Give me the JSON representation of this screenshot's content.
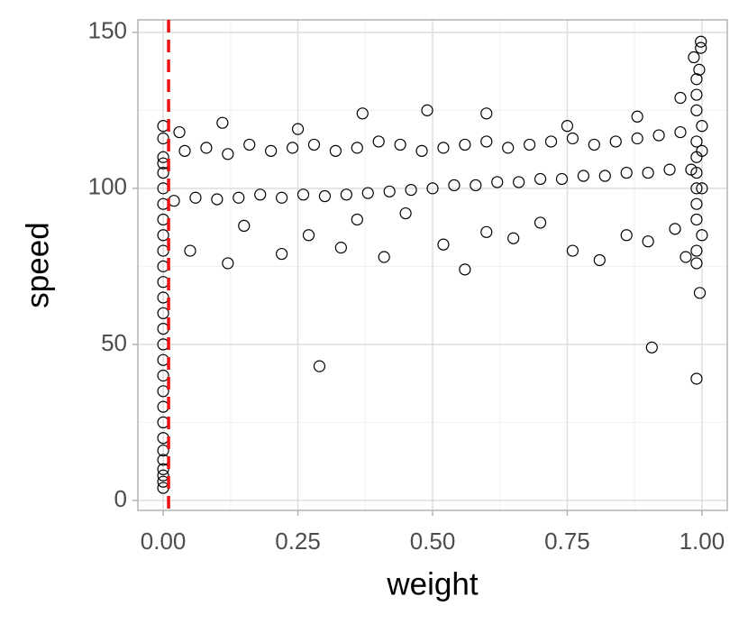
{
  "chart_data": {
    "type": "scatter",
    "x_label": "weight",
    "y_label": "speed",
    "xlim": [
      -0.047,
      1.047
    ],
    "ylim": [
      -3.2,
      154
    ],
    "xticks": [
      {
        "value": 0,
        "label": "0.00"
      },
      {
        "value": 0.25,
        "label": "0.25"
      },
      {
        "value": 0.5,
        "label": "0.50"
      },
      {
        "value": 0.75,
        "label": "0.75"
      },
      {
        "value": 1,
        "label": "1.00"
      }
    ],
    "yticks": [
      0,
      50,
      100,
      150
    ],
    "x_minor_grid": [
      0.125,
      0.375,
      0.625,
      0.875
    ],
    "y_minor_grid": [
      25,
      75,
      125
    ],
    "grid": true,
    "vline": {
      "x": 0.01,
      "color": "#ee1111"
    },
    "series": [
      {
        "color": "#000000",
        "x": [
          0,
          0,
          0,
          0,
          0,
          0,
          0,
          0,
          0,
          0,
          0,
          0,
          0,
          0,
          0,
          0,
          0,
          0,
          0,
          0,
          0,
          0,
          0,
          0,
          0,
          0,
          0,
          0,
          0.02,
          0.06,
          0.1,
          0.14,
          0.18,
          0.22,
          0.26,
          0.3,
          0.34,
          0.38,
          0.42,
          0.46,
          0.5,
          0.54,
          0.58,
          0.62,
          0.66,
          0.7,
          0.74,
          0.78,
          0.82,
          0.86,
          0.9,
          0.94,
          0.98,
          0.04,
          0.08,
          0.12,
          0.16,
          0.2,
          0.24,
          0.28,
          0.32,
          0.36,
          0.4,
          0.44,
          0.48,
          0.52,
          0.56,
          0.6,
          0.64,
          0.68,
          0.72,
          0.76,
          0.8,
          0.84,
          0.88,
          0.92,
          0.96,
          1.0,
          0.05,
          0.12,
          0.15,
          0.22,
          0.27,
          0.33,
          0.36,
          0.41,
          0.45,
          0.52,
          0.56,
          0.6,
          0.65,
          0.7,
          0.76,
          0.81,
          0.86,
          0.9,
          0.95,
          0.97,
          0.99,
          0.03,
          0.11,
          0.25,
          0.37,
          0.49,
          0.6,
          0.75,
          0.88,
          0.96,
          0.99,
          0.995,
          0.99,
          0.99,
          0.99,
          0.99,
          0.99,
          0.99,
          0.99,
          0.99,
          0.99,
          1.0,
          1.0,
          1.0,
          0.29,
          0.907,
          0.99,
          0.996,
          0.998,
          0.998,
          0.985
        ],
        "values": [
          4,
          6,
          8,
          10,
          13,
          16,
          20,
          25,
          30,
          35,
          40,
          45,
          50,
          55,
          60,
          65,
          70,
          75,
          80,
          85,
          90,
          95,
          100,
          105,
          108,
          110,
          116,
          120,
          96,
          97,
          96.5,
          97,
          98,
          97,
          98,
          97.5,
          98,
          98.5,
          99,
          99.5,
          100,
          101,
          101,
          102,
          102,
          103,
          103,
          104,
          104,
          105,
          105,
          106,
          106,
          112,
          113,
          111,
          114,
          112,
          113,
          114,
          112,
          113,
          115,
          114,
          112,
          113,
          114,
          115,
          113,
          114,
          115,
          116,
          114,
          115,
          116,
          117,
          118,
          120,
          80,
          76,
          88,
          79,
          85,
          81,
          90,
          78,
          92,
          82,
          74,
          86,
          84,
          89,
          80,
          77,
          85,
          83,
          87,
          78,
          76,
          118,
          121,
          119,
          124,
          125,
          124,
          120,
          123,
          129,
          135,
          138,
          80,
          90,
          95,
          100,
          105,
          110,
          115,
          125,
          130,
          85,
          100,
          112,
          43,
          49,
          39,
          66.5,
          147,
          145,
          142
        ]
      }
    ]
  }
}
